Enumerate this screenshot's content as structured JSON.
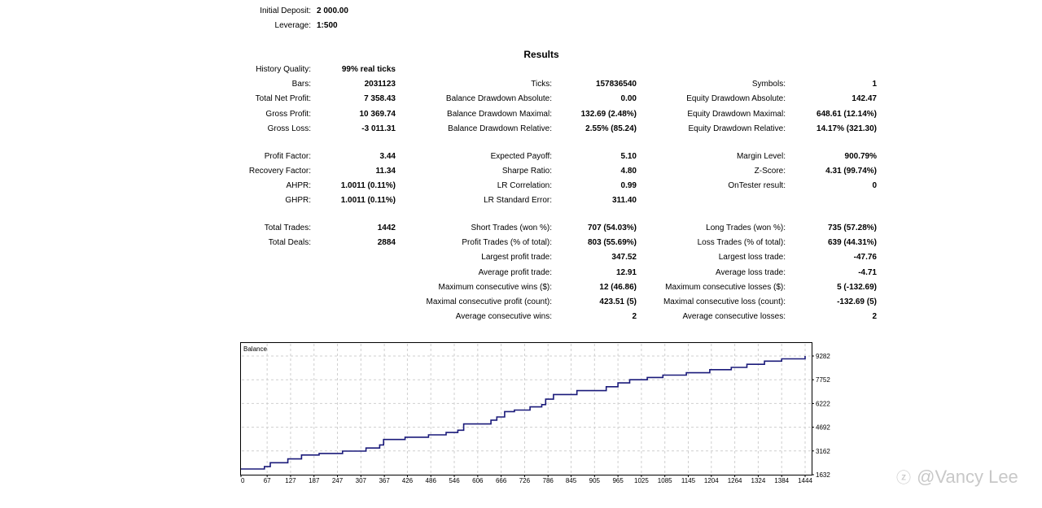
{
  "header": {
    "initial_deposit": {
      "label": "Initial Deposit:",
      "value": "2 000.00"
    },
    "leverage": {
      "label": "Leverage:",
      "value": "1:500"
    }
  },
  "results_title": "Results",
  "stats": {
    "history_quality": {
      "label": "History Quality:",
      "value": "99% real ticks"
    },
    "bars": {
      "label": "Bars:",
      "value": "2031123"
    },
    "total_net_profit": {
      "label": "Total Net Profit:",
      "value": "7 358.43"
    },
    "gross_profit": {
      "label": "Gross Profit:",
      "value": "10 369.74"
    },
    "gross_loss": {
      "label": "Gross Loss:",
      "value": "-3 011.31"
    },
    "profit_factor": {
      "label": "Profit Factor:",
      "value": "3.44"
    },
    "recovery_factor": {
      "label": "Recovery Factor:",
      "value": "11.34"
    },
    "ahpr": {
      "label": "AHPR:",
      "value": "1.0011 (0.11%)"
    },
    "ghpr": {
      "label": "GHPR:",
      "value": "1.0011 (0.11%)"
    },
    "total_trades": {
      "label": "Total Trades:",
      "value": "1442"
    },
    "total_deals": {
      "label": "Total Deals:",
      "value": "2884"
    },
    "ticks": {
      "label": "Ticks:",
      "value": "157836540"
    },
    "balance_dd_absolute": {
      "label": "Balance Drawdown Absolute:",
      "value": "0.00"
    },
    "balance_dd_maximal": {
      "label": "Balance Drawdown Maximal:",
      "value": "132.69 (2.48%)"
    },
    "balance_dd_relative": {
      "label": "Balance Drawdown Relative:",
      "value": "2.55% (85.24)"
    },
    "expected_payoff": {
      "label": "Expected Payoff:",
      "value": "5.10"
    },
    "sharpe_ratio": {
      "label": "Sharpe Ratio:",
      "value": "4.80"
    },
    "lr_correlation": {
      "label": "LR Correlation:",
      "value": "0.99"
    },
    "lr_standard_error": {
      "label": "LR Standard Error:",
      "value": "311.40"
    },
    "short_trades": {
      "label": "Short Trades (won %):",
      "value": "707 (54.03%)"
    },
    "profit_trades": {
      "label": "Profit Trades (% of total):",
      "value": "803 (55.69%)"
    },
    "largest_profit_trade": {
      "label": "Largest profit trade:",
      "value": "347.52"
    },
    "average_profit_trade": {
      "label": "Average profit trade:",
      "value": "12.91"
    },
    "max_consecutive_wins": {
      "label": "Maximum consecutive wins ($):",
      "value": "12 (46.86)"
    },
    "maximal_consecutive_profit": {
      "label": "Maximal consecutive profit (count):",
      "value": "423.51 (5)"
    },
    "average_consecutive_wins": {
      "label": "Average consecutive wins:",
      "value": "2"
    },
    "symbols": {
      "label": "Symbols:",
      "value": "1"
    },
    "equity_dd_absolute": {
      "label": "Equity Drawdown Absolute:",
      "value": "142.47"
    },
    "equity_dd_maximal": {
      "label": "Equity Drawdown Maximal:",
      "value": "648.61 (12.14%)"
    },
    "equity_dd_relative": {
      "label": "Equity Drawdown Relative:",
      "value": "14.17% (321.30)"
    },
    "margin_level": {
      "label": "Margin Level:",
      "value": "900.79%"
    },
    "z_score": {
      "label": "Z-Score:",
      "value": "4.31 (99.74%)"
    },
    "ontester_result": {
      "label": "OnTester result:",
      "value": "0"
    },
    "long_trades": {
      "label": "Long Trades (won %):",
      "value": "735 (57.28%)"
    },
    "loss_trades": {
      "label": "Loss Trades (% of total):",
      "value": "639 (44.31%)"
    },
    "largest_loss_trade": {
      "label": "Largest loss trade:",
      "value": "-47.76"
    },
    "average_loss_trade": {
      "label": "Average loss trade:",
      "value": "-4.71"
    },
    "max_consecutive_losses": {
      "label": "Maximum consecutive losses ($):",
      "value": "5 (-132.69)"
    },
    "maximal_consecutive_loss": {
      "label": "Maximal consecutive loss (count):",
      "value": "-132.69 (5)"
    },
    "average_consecutive_losses": {
      "label": "Average consecutive losses:",
      "value": "2"
    }
  },
  "chart_data": {
    "type": "line",
    "title": "Balance",
    "xlabel": "",
    "ylabel": "",
    "x_ticks": [
      "0",
      "67",
      "127",
      "187",
      "247",
      "307",
      "367",
      "426",
      "486",
      "546",
      "606",
      "666",
      "726",
      "786",
      "845",
      "905",
      "965",
      "1025",
      "1085",
      "1145",
      "1204",
      "1264",
      "1324",
      "1384",
      "1444"
    ],
    "y_ticks": [
      "1632",
      "3162",
      "4692",
      "6222",
      "7752",
      "9282"
    ],
    "xlim": [
      0,
      1444
    ],
    "ylim": [
      1632,
      9282
    ],
    "grid": true,
    "line_color": "#1a1a7a",
    "series": [
      {
        "name": "Balance",
        "points": [
          [
            0,
            2000
          ],
          [
            60,
            2150
          ],
          [
            75,
            2400
          ],
          [
            120,
            2650
          ],
          [
            155,
            2900
          ],
          [
            200,
            3000
          ],
          [
            260,
            3150
          ],
          [
            320,
            3350
          ],
          [
            355,
            3550
          ],
          [
            365,
            3900
          ],
          [
            420,
            4050
          ],
          [
            480,
            4200
          ],
          [
            525,
            4350
          ],
          [
            555,
            4500
          ],
          [
            570,
            4900
          ],
          [
            640,
            5150
          ],
          [
            655,
            5350
          ],
          [
            675,
            5700
          ],
          [
            700,
            5800
          ],
          [
            740,
            6000
          ],
          [
            770,
            6150
          ],
          [
            780,
            6500
          ],
          [
            800,
            6800
          ],
          [
            860,
            7050
          ],
          [
            935,
            7300
          ],
          [
            965,
            7550
          ],
          [
            995,
            7750
          ],
          [
            1040,
            7900
          ],
          [
            1080,
            8050
          ],
          [
            1140,
            8200
          ],
          [
            1200,
            8400
          ],
          [
            1255,
            8550
          ],
          [
            1295,
            8750
          ],
          [
            1340,
            8950
          ],
          [
            1384,
            9100
          ],
          [
            1444,
            9282
          ]
        ]
      }
    ]
  },
  "watermark": {
    "icon": "zhihu-logo-icon",
    "text": "@Vancy Lee"
  }
}
